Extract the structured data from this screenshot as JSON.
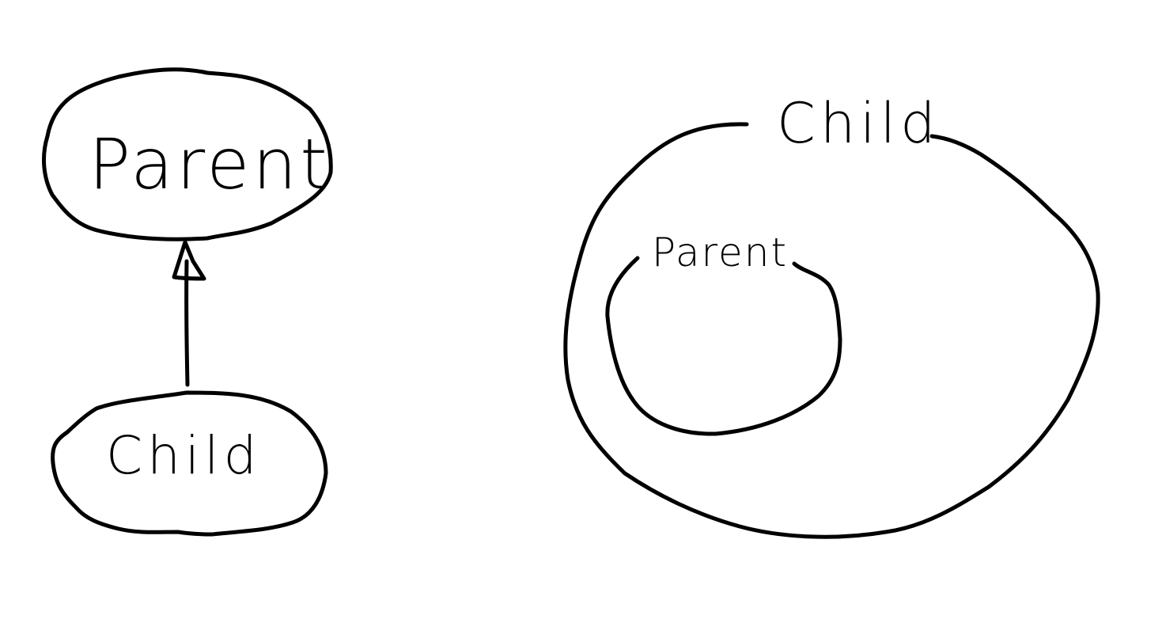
{
  "colors": {
    "background": "#ffffff",
    "ink": "#000000"
  },
  "left_diagram": {
    "parent_label": "Parent",
    "child_label": "Child",
    "arrow": "child-to-parent"
  },
  "right_diagram": {
    "outer_label": "Child",
    "inner_label": "Parent"
  }
}
